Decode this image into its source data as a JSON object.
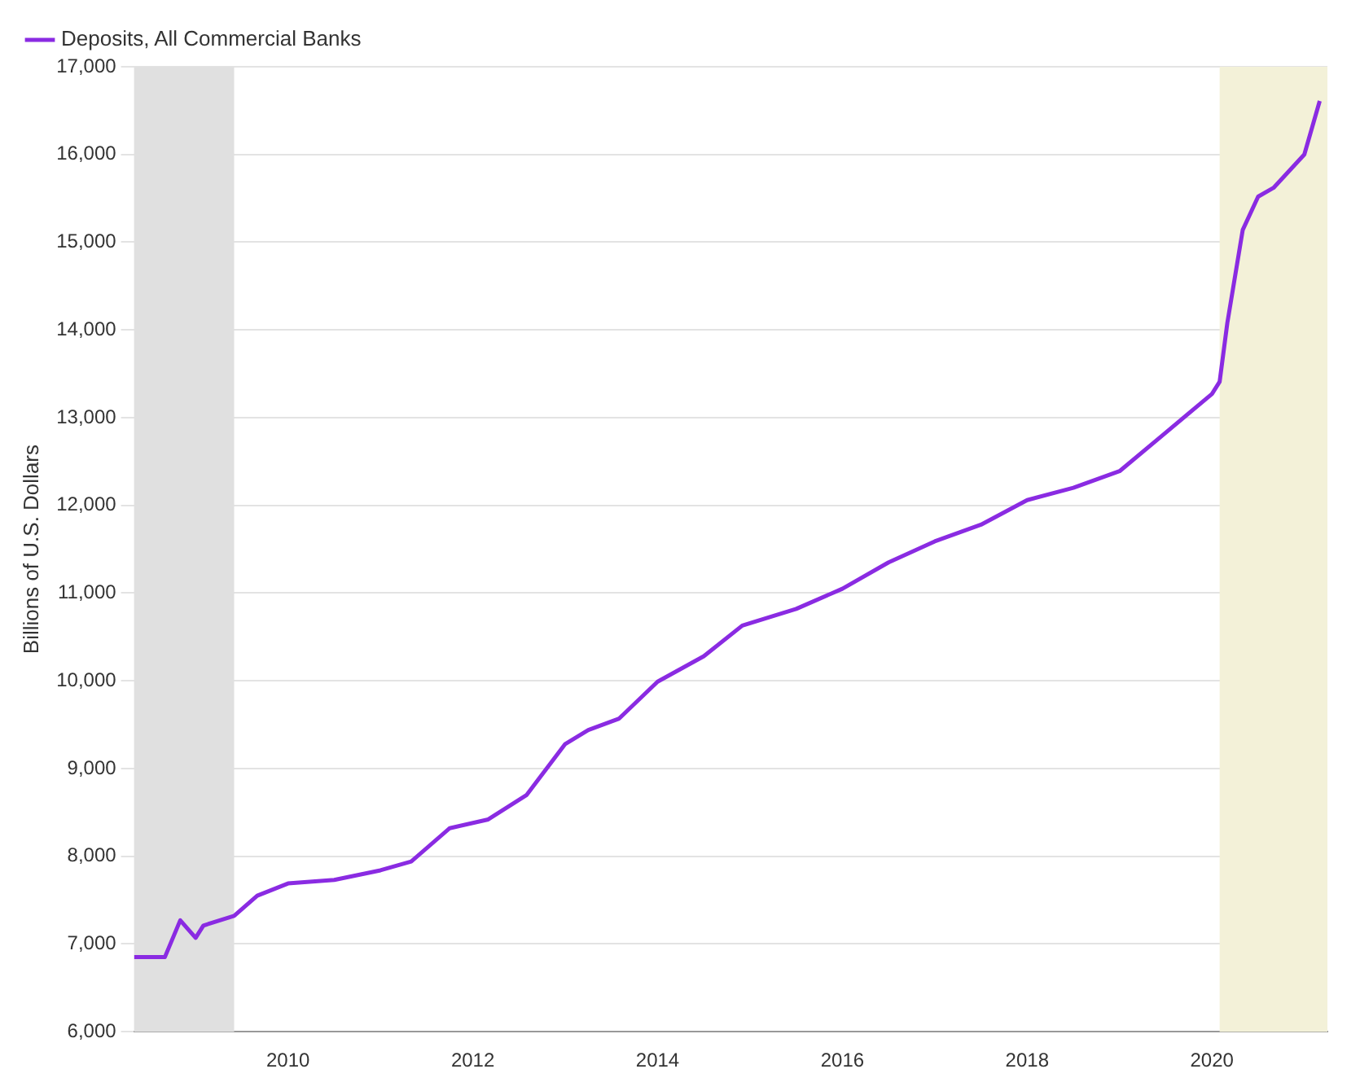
{
  "chart_data": {
    "type": "line",
    "ylabel": "Billions of U.S. Dollars",
    "legend": "top left",
    "grid": "y",
    "x": [
      "2008-05",
      "2008-09",
      "2008-11",
      "2009-01",
      "2009-02",
      "2009-06",
      "2009-09",
      "2010-01",
      "2010-07",
      "2011-01",
      "2011-05",
      "2011-10",
      "2012-03",
      "2012-08",
      "2013-01",
      "2013-04",
      "2013-08",
      "2014-01",
      "2014-07",
      "2014-12",
      "2015-07",
      "2016-01",
      "2016-07",
      "2017-01",
      "2017-07",
      "2018-01",
      "2018-07",
      "2019-01",
      "2019-07",
      "2020-01",
      "2020-02",
      "2020-03",
      "2020-05",
      "2020-07",
      "2020-09",
      "2021-01",
      "2021-03"
    ],
    "series": [
      {
        "name": "Deposits, All Commercial Banks",
        "color": "#8a2be2",
        "values": [
          6850,
          6850,
          7270,
          7070,
          7210,
          7320,
          7550,
          7690,
          7730,
          7840,
          7940,
          8320,
          8420,
          8700,
          9280,
          9440,
          9570,
          9990,
          10280,
          10630,
          10820,
          11050,
          11350,
          11590,
          11780,
          12060,
          12200,
          12390,
          12830,
          13270,
          13410,
          14080,
          15140,
          15520,
          15620,
          16000,
          16610
        ]
      }
    ],
    "xlim": [
      "2008-05",
      "2021-04"
    ],
    "xticks": [
      "2010",
      "2012",
      "2014",
      "2016",
      "2018",
      "2020"
    ],
    "ylim": [
      6000,
      17000
    ],
    "yticks": [
      {
        "value": 6000,
        "label": "6,000"
      },
      {
        "value": 7000,
        "label": "7,000"
      },
      {
        "value": 8000,
        "label": "8,000"
      },
      {
        "value": 9000,
        "label": "9,000"
      },
      {
        "value": 10000,
        "label": "10,000"
      },
      {
        "value": 11000,
        "label": "11,000"
      },
      {
        "value": 12000,
        "label": "12,000"
      },
      {
        "value": 13000,
        "label": "13,000"
      },
      {
        "value": 14000,
        "label": "14,000"
      },
      {
        "value": 15000,
        "label": "15,000"
      },
      {
        "value": 16000,
        "label": "16,000"
      },
      {
        "value": 17000,
        "label": "17,000"
      }
    ],
    "bands": [
      {
        "axis": "x",
        "from": "2008-05",
        "to": "2009-06",
        "color": "#e0e0e0"
      },
      {
        "axis": "x",
        "from": "2020-02",
        "to": "2021-04",
        "color": "#f3f1d8"
      }
    ]
  }
}
